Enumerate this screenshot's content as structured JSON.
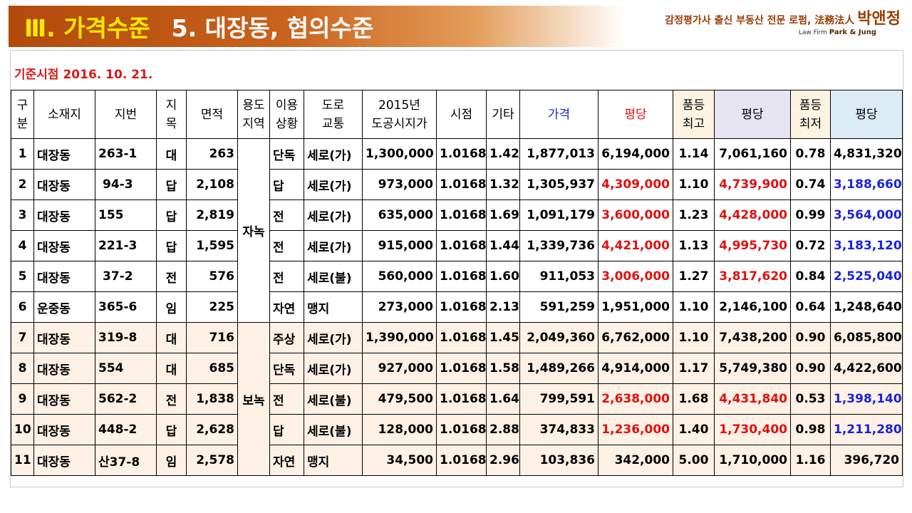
{
  "banner": {
    "section": "Ⅲ. 가격수준",
    "subtitle": "5. 대장동, 협의수준"
  },
  "firm": {
    "tagline": "감정평가사 출신 부동산 전문 로펌, 法務法人",
    "name": "박앤정",
    "sub_prefix": "Law Firm ",
    "sub_name": "Park & Jung"
  },
  "base_date": "기준시점 2016. 10. 21.",
  "colors": {
    "banner_start": "#b34a0a",
    "title_number": "#ffeb00",
    "date_red": "#d81818",
    "value_red": "#e01010",
    "value_blue": "#1a24d8",
    "boknok_bg": "#fdf1e6"
  },
  "table": {
    "headers": {
      "gubun": "구분",
      "location": "소재지",
      "lot": "지번",
      "jimok": "지목",
      "area": "면적",
      "zone": "용도지역",
      "use": "이용상황",
      "road": "도로교통",
      "official": "2015년도공시지가",
      "timepoint": "시점",
      "other": "기타",
      "price": "가격",
      "per_pyeong": "평당",
      "grade_max": "품등최고",
      "per_pyeong_max": "평당",
      "grade_min": "품등최저",
      "per_pyeong_min": "평당"
    },
    "zones": {
      "group1": "자녹",
      "group2": "보녹"
    },
    "rows": [
      {
        "no": "1",
        "loc": "대장동",
        "lot": "263-1",
        "jimok": "대",
        "area": "263",
        "use": "단독",
        "road": "세로(가)",
        "official": "1,300,000",
        "tp": "1.0168",
        "etc": "1.42",
        "price": "1,877,013",
        "pp": "6,194,000",
        "gmax": "1.14",
        "ppmax": "7,061,160",
        "gmin": "0.78",
        "ppmin": "4,831,320"
      },
      {
        "no": "2",
        "loc": "대장동",
        "lot": "94-3",
        "jimok": "답",
        "area": "2,108",
        "use": "답",
        "road": "세로(가)",
        "official": "973,000",
        "tp": "1.0168",
        "etc": "1.32",
        "price": "1,305,937",
        "pp": "4,309,000",
        "gmax": "1.10",
        "ppmax": "4,739,900",
        "gmin": "0.74",
        "ppmin": "3,188,660"
      },
      {
        "no": "3",
        "loc": "대장동",
        "lot": "155",
        "jimok": "답",
        "area": "2,819",
        "use": "전",
        "road": "세로(가)",
        "official": "635,000",
        "tp": "1.0168",
        "etc": "1.69",
        "price": "1,091,179",
        "pp": "3,600,000",
        "gmax": "1.23",
        "ppmax": "4,428,000",
        "gmin": "0.99",
        "ppmin": "3,564,000"
      },
      {
        "no": "4",
        "loc": "대장동",
        "lot": "221-3",
        "jimok": "답",
        "area": "1,595",
        "use": "전",
        "road": "세로(가)",
        "official": "915,000",
        "tp": "1.0168",
        "etc": "1.44",
        "price": "1,339,736",
        "pp": "4,421,000",
        "gmax": "1.13",
        "ppmax": "4,995,730",
        "gmin": "0.72",
        "ppmin": "3,183,120"
      },
      {
        "no": "5",
        "loc": "대장동",
        "lot": "37-2",
        "jimok": "전",
        "area": "576",
        "use": "전",
        "road": "세로(불)",
        "official": "560,000",
        "tp": "1.0168",
        "etc": "1.60",
        "price": "911,053",
        "pp": "3,006,000",
        "gmax": "1.27",
        "ppmax": "3,817,620",
        "gmin": "0.84",
        "ppmin": "2,525,040"
      },
      {
        "no": "6",
        "loc": "운중동",
        "lot": "365-6",
        "jimok": "임",
        "area": "225",
        "use": "자연",
        "road": "맹지",
        "official": "273,000",
        "tp": "1.0168",
        "etc": "2.13",
        "price": "591,259",
        "pp": "1,951,000",
        "gmax": "1.10",
        "ppmax": "2,146,100",
        "gmin": "0.64",
        "ppmin": "1,248,640"
      },
      {
        "no": "7",
        "loc": "대장동",
        "lot": "319-8",
        "jimok": "대",
        "area": "716",
        "use": "주상",
        "road": "세로(가)",
        "official": "1,390,000",
        "tp": "1.0168",
        "etc": "1.45",
        "price": "2,049,360",
        "pp": "6,762,000",
        "gmax": "1.10",
        "ppmax": "7,438,200",
        "gmin": "0.90",
        "ppmin": "6,085,800"
      },
      {
        "no": "8",
        "loc": "대장동",
        "lot": "554",
        "jimok": "대",
        "area": "685",
        "use": "단독",
        "road": "세로(가)",
        "official": "927,000",
        "tp": "1.0168",
        "etc": "1.58",
        "price": "1,489,266",
        "pp": "4,914,000",
        "gmax": "1.17",
        "ppmax": "5,749,380",
        "gmin": "0.90",
        "ppmin": "4,422,600"
      },
      {
        "no": "9",
        "loc": "대장동",
        "lot": "562-2",
        "jimok": "전",
        "area": "1,838",
        "use": "전",
        "road": "세로(불)",
        "official": "479,500",
        "tp": "1.0168",
        "etc": "1.64",
        "price": "799,591",
        "pp": "2,638,000",
        "gmax": "1.68",
        "ppmax": "4,431,840",
        "gmin": "0.53",
        "ppmin": "1,398,140"
      },
      {
        "no": "10",
        "loc": "대장동",
        "lot": "448-2",
        "jimok": "답",
        "area": "2,628",
        "use": "답",
        "road": "세로(불)",
        "official": "128,000",
        "tp": "1.0168",
        "etc": "2.88",
        "price": "374,833",
        "pp": "1,236,000",
        "gmax": "1.40",
        "ppmax": "1,730,400",
        "gmin": "0.98",
        "ppmin": "1,211,280"
      },
      {
        "no": "11",
        "loc": "대장동",
        "lot": "산37-8",
        "jimok": "임",
        "area": "2,578",
        "use": "자연",
        "road": "맹지",
        "official": "34,500",
        "tp": "1.0168",
        "etc": "2.96",
        "price": "103,836",
        "pp": "342,000",
        "gmax": "5.00",
        "ppmax": "1,710,000",
        "gmin": "1.16",
        "ppmin": "396,720"
      }
    ]
  }
}
